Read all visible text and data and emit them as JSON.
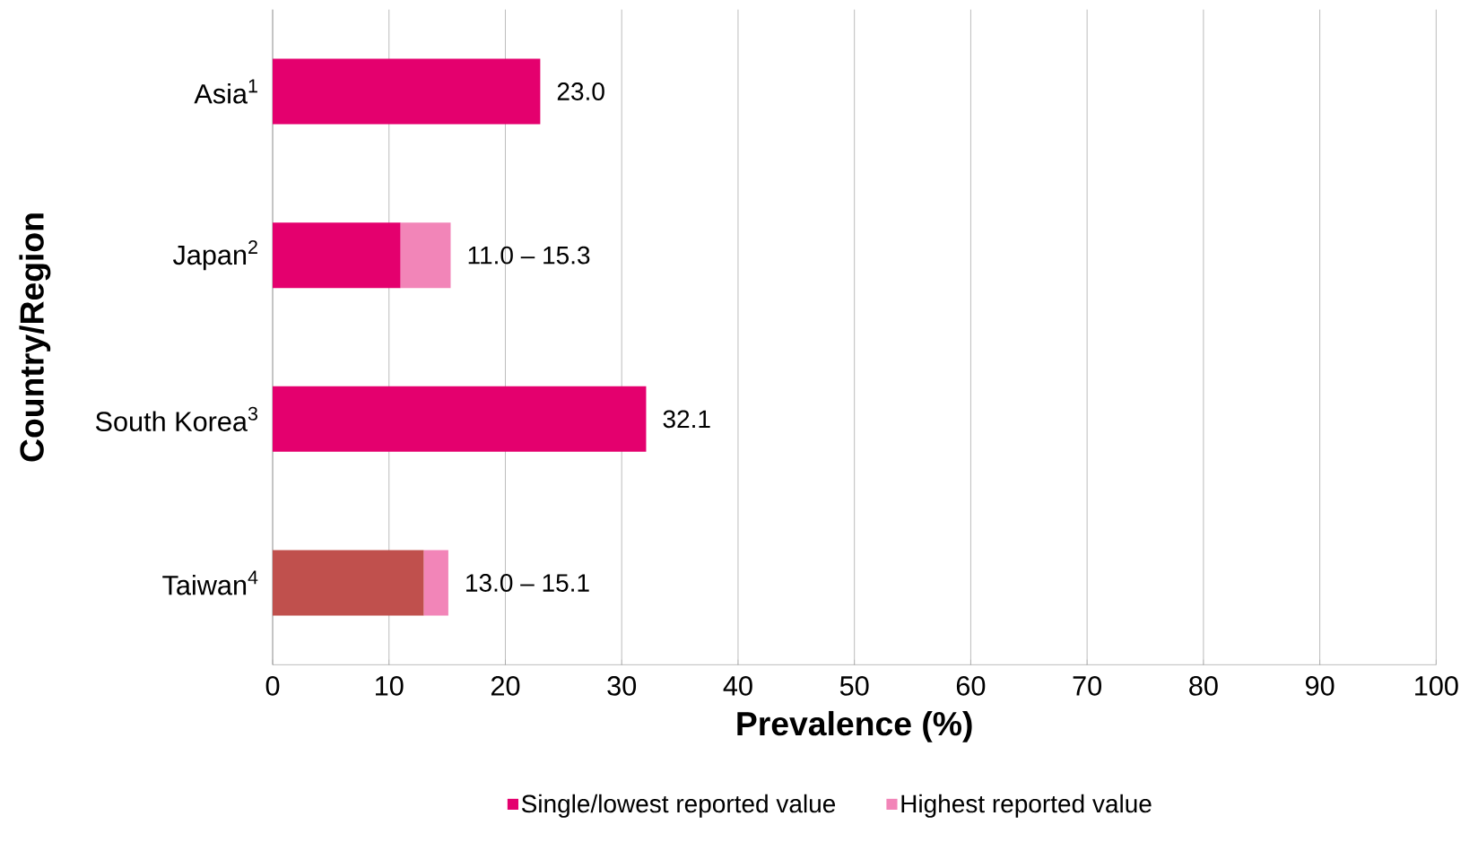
{
  "chart_data": {
    "type": "bar",
    "orientation": "horizontal",
    "stacked": true,
    "xlabel": "Prevalence (%)",
    "ylabel": "Country/Region",
    "categories": [
      "Asia$^{1}$",
      "Japan$^{2}$",
      "South Korea$^{3}$",
      "Taiwan$^{4}$"
    ],
    "series": [
      {
        "name": "Single/lowest reported value",
        "color": "#e4006e",
        "colors": [
          "#e4006e",
          "#e4006e",
          "#e4006e",
          "#c0504d"
        ],
        "values": [
          23.0,
          11.0,
          32.1,
          13.0
        ]
      },
      {
        "name": "Highest reported value",
        "color": "#f285b8",
        "values": [
          null,
          4.3,
          null,
          2.1
        ]
      }
    ],
    "totals": [
      "23.0",
      "11.0 – 15.3",
      "32.1",
      "13.0 – 15.1"
    ],
    "xlim": [
      0,
      100
    ],
    "xticks": [
      0,
      10,
      20,
      30,
      40,
      50,
      60,
      70,
      80,
      90,
      100
    ],
    "grid": "x",
    "legend": "bottom"
  }
}
